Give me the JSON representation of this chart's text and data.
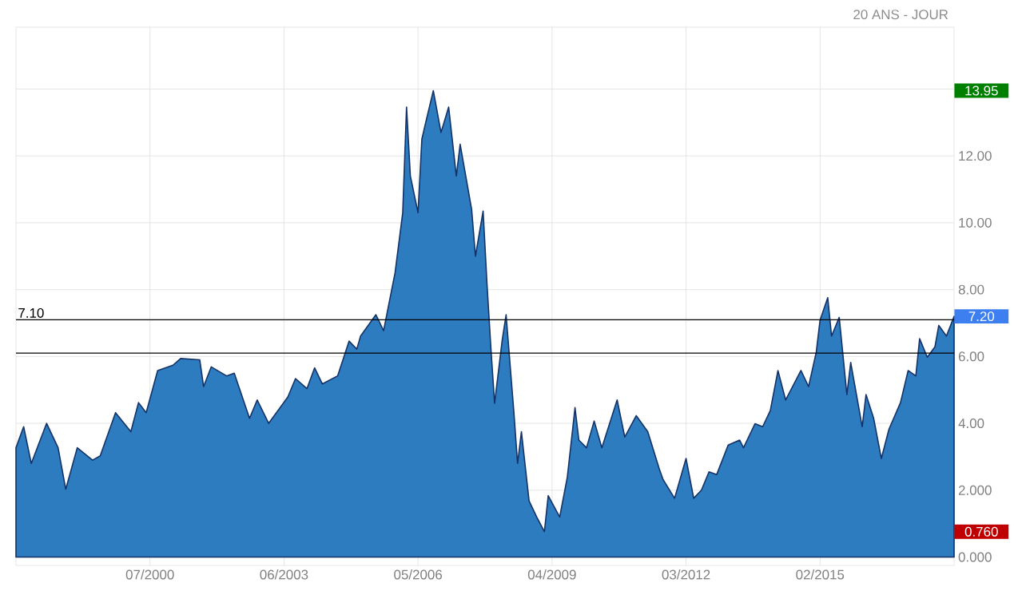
{
  "chart_data": {
    "type": "area",
    "subtitle": "20 ANS - JOUR",
    "x": [
      "1997-08",
      "1997-10",
      "1997-12",
      "1998-04",
      "1998-07",
      "1998-09",
      "1998-12",
      "1999-04",
      "1999-06",
      "1999-10",
      "2000-02",
      "2000-04",
      "2000-06",
      "2000-09",
      "2001-01",
      "2001-03",
      "2001-08",
      "2001-09",
      "2001-11",
      "2002-03",
      "2002-05",
      "2002-09",
      "2002-11",
      "2003-02",
      "2003-07",
      "2003-09",
      "2003-12",
      "2004-02",
      "2004-04",
      "2004-08",
      "2004-11",
      "2005-01",
      "2005-02",
      "2005-06",
      "2005-08",
      "2005-11",
      "2006-01",
      "2006-02",
      "2006-03",
      "2006-05",
      "2006-06",
      "2006-07",
      "2006-09",
      "2006-11",
      "2007-01",
      "2007-03",
      "2007-04",
      "2007-07",
      "2007-08",
      "2007-10",
      "2007-11",
      "2007-12",
      "2008-01",
      "2008-03",
      "2008-04",
      "2008-06",
      "2008-07",
      "2008-08",
      "2008-10",
      "2008-12",
      "2009-02",
      "2009-03",
      "2009-06",
      "2009-08",
      "2009-10",
      "2009-11",
      "2010-01",
      "2010-03",
      "2010-05",
      "2010-09",
      "2010-11",
      "2011-02",
      "2011-05",
      "2011-08",
      "2011-09",
      "2011-12",
      "2012-03",
      "2012-05",
      "2012-07",
      "2012-09",
      "2012-11",
      "2013-02",
      "2013-05",
      "2013-06",
      "2013-09",
      "2013-11",
      "2014-01",
      "2014-03",
      "2014-05",
      "2014-09",
      "2014-11",
      "2015-01",
      "2015-02",
      "2015-04",
      "2015-05",
      "2015-07",
      "2015-09",
      "2015-10",
      "2016-01",
      "2016-02",
      "2016-04",
      "2016-06",
      "2016-08",
      "2016-11",
      "2017-01",
      "2017-03",
      "2017-04",
      "2017-06",
      "2017-08",
      "2017-09",
      "2017-11",
      "2018-01"
    ],
    "series": [
      {
        "color": "#2e7cc0",
        "values": [
          3.27,
          3.9,
          2.8,
          4.0,
          3.27,
          2.03,
          3.27,
          2.9,
          3.03,
          4.32,
          3.75,
          4.62,
          4.32,
          5.58,
          5.74,
          5.94,
          5.9,
          5.1,
          5.69,
          5.42,
          5.5,
          4.15,
          4.7,
          4.0,
          4.79,
          5.34,
          5.04,
          5.66,
          5.18,
          5.42,
          6.46,
          6.22,
          6.61,
          7.25,
          6.77,
          8.5,
          10.3,
          13.46,
          11.4,
          10.3,
          12.5,
          13.0,
          13.95,
          12.7,
          13.46,
          11.4,
          12.35,
          10.4,
          9.0,
          10.35,
          8.2,
          6.3,
          4.6,
          6.5,
          7.25,
          4.38,
          2.8,
          3.75,
          1.68,
          1.2,
          0.76,
          1.84,
          1.2,
          2.4,
          4.47,
          3.5,
          3.27,
          4.07,
          3.27,
          4.7,
          3.59,
          4.23,
          3.75,
          2.64,
          2.32,
          1.76,
          2.95,
          1.76,
          2.0,
          2.55,
          2.47,
          3.35,
          3.5,
          3.27,
          3.99,
          3.9,
          4.38,
          5.58,
          4.7,
          5.58,
          5.1,
          6.13,
          7.09,
          7.76,
          6.61,
          7.17,
          4.86,
          5.82,
          3.9,
          4.86,
          4.15,
          2.95,
          3.83,
          4.62,
          5.58,
          5.42,
          6.53,
          5.98,
          6.29,
          6.93,
          6.61,
          7.2
        ]
      }
    ],
    "xlim": [
      "1997-08",
      "2018-01"
    ],
    "xticks": [
      {
        "value": "2000-07",
        "label": "07/2000"
      },
      {
        "value": "2003-06",
        "label": "06/2003"
      },
      {
        "value": "2006-05",
        "label": "05/2006"
      },
      {
        "value": "2009-04",
        "label": "04/2009"
      },
      {
        "value": "2012-03",
        "label": "03/2012"
      },
      {
        "value": "2015-02",
        "label": "02/2015"
      }
    ],
    "ylim": [
      -0.25,
      15.85
    ],
    "yticks": [
      {
        "value": 0,
        "label": "0.000"
      },
      {
        "value": 2,
        "label": "2.000"
      },
      {
        "value": 4,
        "label": "4.00"
      },
      {
        "value": 6,
        "label": "6.00"
      },
      {
        "value": 8,
        "label": "8.00"
      },
      {
        "value": 10,
        "label": "10.00"
      },
      {
        "value": 12,
        "label": "12.00"
      },
      {
        "value": 14,
        "label": null
      }
    ],
    "grid": true,
    "ref_lines": [
      {
        "axis": "y",
        "value": 7.1,
        "label": "7.10",
        "color": "#000000"
      },
      {
        "axis": "y",
        "value": 6.1,
        "color": "#000000"
      }
    ],
    "annotations": [
      "13.95",
      "0.760",
      "7.20"
    ]
  }
}
